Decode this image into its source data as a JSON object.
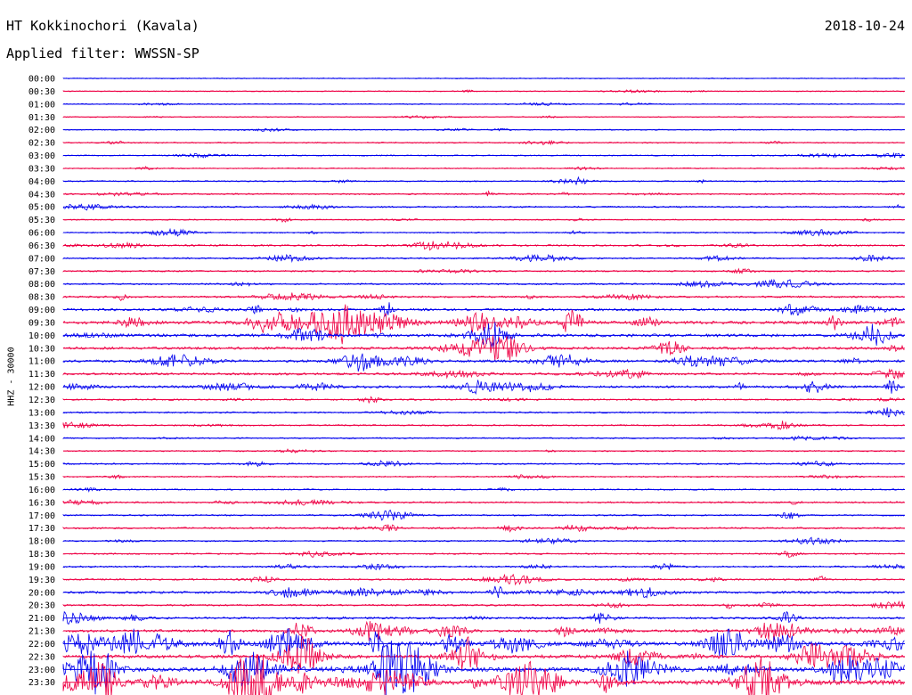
{
  "header": {
    "station": "HT Kokkinochori (Kavala)",
    "date": "2018-10-24",
    "filter": "Applied filter: WWSSN-SP"
  },
  "chart_data": {
    "type": "line",
    "title": "HT Kokkinochori (Kavala)",
    "ylabel": "HHZ - 30000",
    "xlabel": "",
    "colors": [
      "#0000ee",
      "#ee0044"
    ],
    "traces": [
      {
        "time": "00:00",
        "activity": 0.05
      },
      {
        "time": "00:30",
        "activity": 0.06
      },
      {
        "time": "01:00",
        "activity": 0.06
      },
      {
        "time": "01:30",
        "activity": 0.07
      },
      {
        "time": "02:00",
        "activity": 0.06
      },
      {
        "time": "02:30",
        "activity": 0.12
      },
      {
        "time": "03:00",
        "activity": 0.1
      },
      {
        "time": "03:30",
        "activity": 0.08
      },
      {
        "time": "04:00",
        "activity": 0.14
      },
      {
        "time": "04:30",
        "activity": 0.16
      },
      {
        "time": "05:00",
        "activity": 0.2
      },
      {
        "time": "05:30",
        "activity": 0.1
      },
      {
        "time": "06:00",
        "activity": 0.14
      },
      {
        "time": "06:30",
        "activity": 0.22
      },
      {
        "time": "07:00",
        "activity": 0.18
      },
      {
        "time": "07:30",
        "activity": 0.2
      },
      {
        "time": "08:00",
        "activity": 0.22
      },
      {
        "time": "08:30",
        "activity": 0.26
      },
      {
        "time": "09:00",
        "activity": 0.4
      },
      {
        "time": "09:30",
        "activity": 0.55
      },
      {
        "time": "10:00",
        "activity": 0.55
      },
      {
        "time": "10:30",
        "activity": 0.45
      },
      {
        "time": "11:00",
        "activity": 0.42
      },
      {
        "time": "11:30",
        "activity": 0.35
      },
      {
        "time": "12:00",
        "activity": 0.38
      },
      {
        "time": "12:30",
        "activity": 0.2
      },
      {
        "time": "13:00",
        "activity": 0.18
      },
      {
        "time": "13:30",
        "activity": 0.16
      },
      {
        "time": "14:00",
        "activity": 0.14
      },
      {
        "time": "14:30",
        "activity": 0.14
      },
      {
        "time": "15:00",
        "activity": 0.18
      },
      {
        "time": "15:30",
        "activity": 0.14
      },
      {
        "time": "16:00",
        "activity": 0.14
      },
      {
        "time": "16:30",
        "activity": 0.2
      },
      {
        "time": "17:00",
        "activity": 0.18
      },
      {
        "time": "17:30",
        "activity": 0.24
      },
      {
        "time": "18:00",
        "activity": 0.16
      },
      {
        "time": "18:30",
        "activity": 0.16
      },
      {
        "time": "19:00",
        "activity": 0.22
      },
      {
        "time": "19:30",
        "activity": 0.22
      },
      {
        "time": "20:00",
        "activity": 0.4
      },
      {
        "time": "20:30",
        "activity": 0.24
      },
      {
        "time": "21:00",
        "activity": 0.3
      },
      {
        "time": "21:30",
        "activity": 0.45
      },
      {
        "time": "22:00",
        "activity": 0.75
      },
      {
        "time": "22:30",
        "activity": 0.65
      },
      {
        "time": "23:00",
        "activity": 0.85
      },
      {
        "time": "23:30",
        "activity": 1.0
      }
    ]
  }
}
